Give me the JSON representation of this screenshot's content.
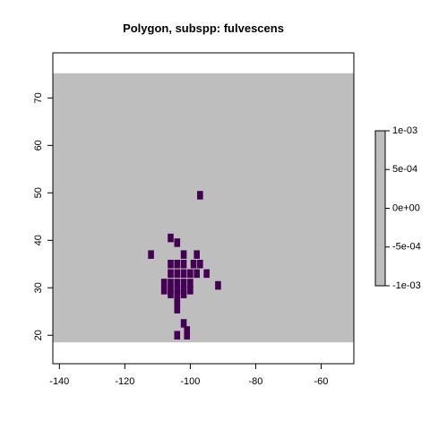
{
  "chart_data": {
    "type": "heatmap",
    "title": "Polygon, subspp: fulvescens",
    "xlabel": "",
    "ylabel": "",
    "xlim": [
      -142,
      -50
    ],
    "ylim": [
      14,
      79.5
    ],
    "x_ticks": [
      -140,
      -120,
      -100,
      -80,
      -60
    ],
    "y_ticks": [
      20,
      30,
      40,
      50,
      60,
      70
    ],
    "x_tick_labels": [
      "-140",
      "-120",
      "-100",
      "-80",
      "-60"
    ],
    "y_tick_labels": [
      "20",
      "30",
      "40",
      "50",
      "60",
      "70"
    ],
    "raster_extent": {
      "x": [
        -142,
        -50
      ],
      "y": [
        18.5,
        75.2
      ]
    },
    "cell_size": 1.8,
    "background_color": "#BEBEBE",
    "presence_color": "#440154",
    "presence_cells": [
      [
        -106,
        35
      ],
      [
        -104,
        35
      ],
      [
        -102,
        35
      ],
      [
        -99,
        35
      ],
      [
        -97,
        35
      ],
      [
        -106,
        33
      ],
      [
        -104,
        33
      ],
      [
        -102,
        33
      ],
      [
        -100,
        33
      ],
      [
        -98,
        33
      ],
      [
        -95,
        33
      ],
      [
        -108,
        31
      ],
      [
        -106,
        31
      ],
      [
        -104,
        31
      ],
      [
        -102,
        31
      ],
      [
        -100,
        31
      ],
      [
        -108,
        29.5
      ],
      [
        -106,
        29.5
      ],
      [
        -104,
        29.5
      ],
      [
        -102,
        29.5
      ],
      [
        -100,
        29.5
      ],
      [
        -106,
        28.7
      ],
      [
        -104,
        28.7
      ],
      [
        -102,
        28.7
      ],
      [
        -104,
        27
      ],
      [
        -104,
        25.5
      ],
      [
        -102,
        22.5
      ],
      [
        -101,
        21
      ],
      [
        -104,
        20
      ],
      [
        -101,
        20
      ],
      [
        -106,
        40.5
      ],
      [
        -104,
        39.5
      ],
      [
        -112,
        37
      ],
      [
        -102,
        37
      ],
      [
        -98,
        37
      ],
      [
        -97,
        49.5
      ],
      [
        -91.5,
        30.5
      ]
    ],
    "legend": {
      "placement": "right",
      "range": [
        -0.001,
        0.001
      ],
      "ticks": [
        0.001,
        0.0005,
        0,
        -0.0005,
        -0.001
      ],
      "labels": [
        "1e-03",
        "5e-04",
        "0e+00",
        "-5e-04",
        "-1e-03"
      ],
      "fill": "#BEBEBE"
    }
  }
}
